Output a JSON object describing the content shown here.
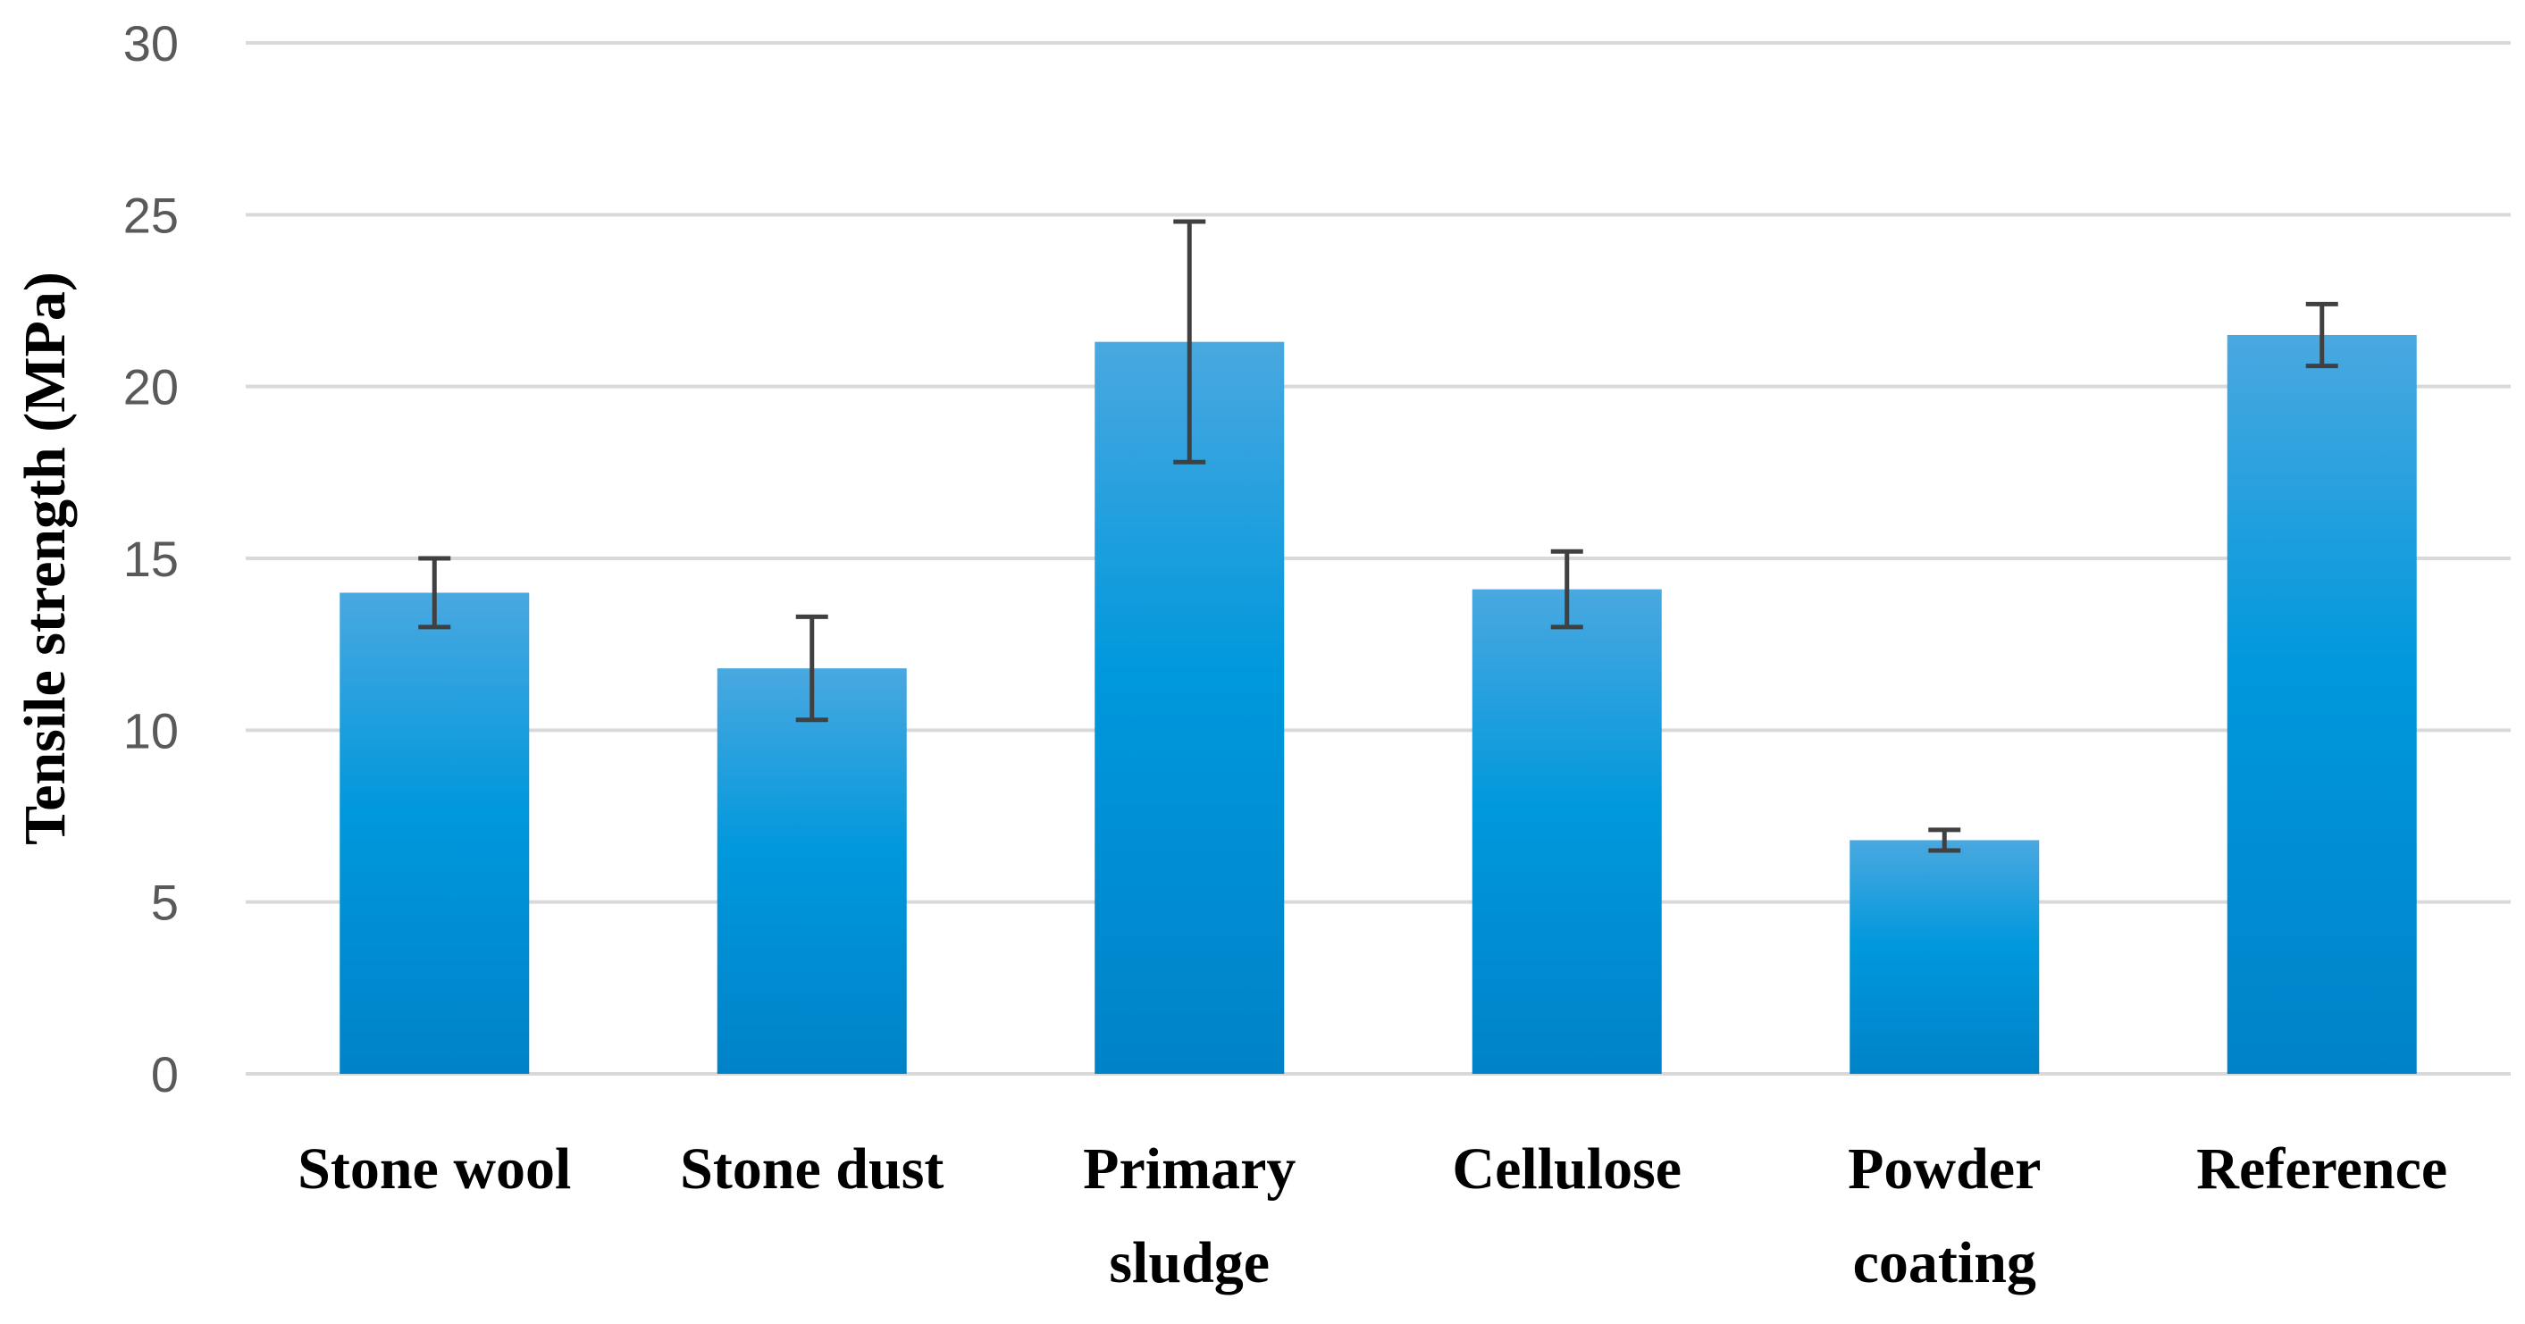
{
  "chart_data": {
    "type": "bar",
    "title": "",
    "xlabel": "",
    "ylabel": "Tensile strength (MPa)",
    "ylim": [
      0,
      30
    ],
    "yticks": [
      0,
      5,
      10,
      15,
      20,
      25,
      30
    ],
    "grid": true,
    "categories": [
      [
        "Stone wool"
      ],
      [
        "Stone dust"
      ],
      [
        "Primary",
        "sludge"
      ],
      [
        "Cellulose"
      ],
      [
        "Powder",
        "coating"
      ],
      [
        "Reference"
      ]
    ],
    "values": [
      14.0,
      11.8,
      21.3,
      14.1,
      6.8,
      21.5
    ],
    "error": [
      1.0,
      1.5,
      3.5,
      1.1,
      0.3,
      0.9
    ],
    "bar_color": "#0098dc",
    "bar_color_top": "#4aa8e0",
    "bar_color_bottom": "#0082c8"
  }
}
